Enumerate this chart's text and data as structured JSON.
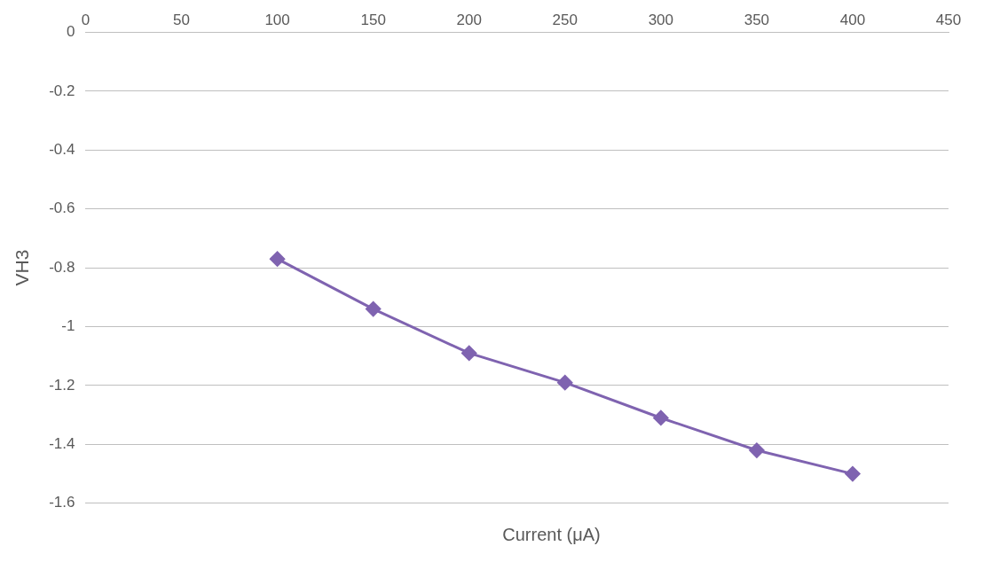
{
  "chart_data": {
    "type": "line",
    "xlabel": "Current  (μA)",
    "ylabel": "VH3",
    "x": [
      100,
      150,
      200,
      250,
      300,
      350,
      400
    ],
    "series": [
      {
        "color": "#7f63b0",
        "values": [
          -0.77,
          -0.94,
          -1.09,
          -1.19,
          -1.31,
          -1.42,
          -1.5
        ]
      }
    ],
    "xlim": [
      0,
      450
    ],
    "xticks": [
      0,
      50,
      100,
      150,
      200,
      250,
      300,
      350,
      400,
      450
    ],
    "ylim": [
      -1.6,
      0
    ],
    "yticks": [
      0,
      -0.2,
      -0.4,
      -0.6,
      -0.8,
      -1,
      -1.2,
      -1.4,
      -1.6
    ],
    "grid": "y",
    "legend": false,
    "marker": "diamond",
    "line_style": "solid"
  }
}
